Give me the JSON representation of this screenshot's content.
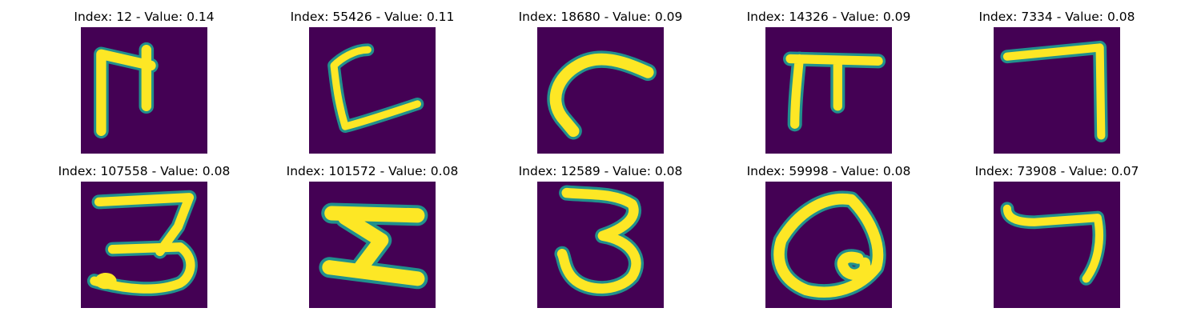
{
  "colors": {
    "background": "#440154",
    "mid": "#21908d",
    "high": "#fde725",
    "title_text": "#000000"
  },
  "panels": [
    {
      "title": "Index: 12 - Value: 0.14",
      "glyph": "handwritten-glyph-grid-bar-with-two-legs"
    },
    {
      "title": "Index: 55426 - Value: 0.11",
      "glyph": "handwritten-glyph-c-shape-with-tail"
    },
    {
      "title": "Index: 18680 - Value: 0.09",
      "glyph": "handwritten-glyph-hook-curve"
    },
    {
      "title": "Index: 14326 - Value: 0.09",
      "glyph": "handwritten-glyph-pi-shape"
    },
    {
      "title": "Index: 7334 - Value: 0.08",
      "glyph": "handwritten-glyph-seven-shape"
    },
    {
      "title": "Index: 107558 - Value: 0.08",
      "glyph": "handwritten-glyph-three-shape"
    },
    {
      "title": "Index: 101572 - Value: 0.08",
      "glyph": "handwritten-glyph-z-like-shape"
    },
    {
      "title": "Index: 12589 - Value: 0.08",
      "glyph": "handwritten-glyph-three-shape"
    },
    {
      "title": "Index: 59998 - Value: 0.08",
      "glyph": "handwritten-glyph-loop-shape"
    },
    {
      "title": "Index: 73908 - Value: 0.07",
      "glyph": "handwritten-glyph-seven-shape"
    }
  ]
}
